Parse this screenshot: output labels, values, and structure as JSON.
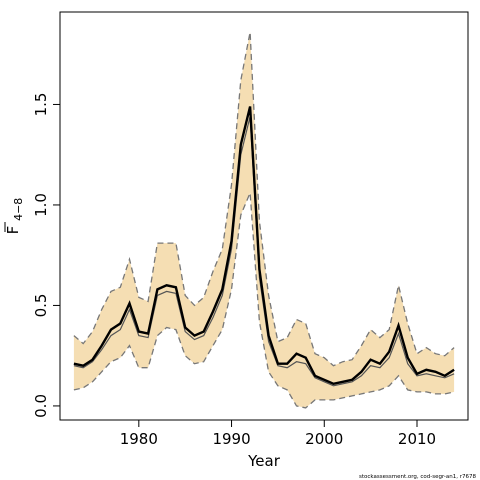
{
  "chart_data": {
    "type": "line",
    "xlabel": "Year",
    "ylabel": {
      "base": "F",
      "subscript": "4−8"
    },
    "footer_note": "stockassessment.org, cod-segr-an1, r7678",
    "xlim": [
      1971.5,
      2015.5
    ],
    "ylim": [
      -0.07,
      1.96
    ],
    "x_ticks": [
      1980,
      1990,
      2000,
      2010
    ],
    "y_ticks": [
      0.0,
      0.5,
      1.0,
      1.5
    ],
    "colors": {
      "band": "#f5deb3",
      "estimate": "#000000",
      "second_line": "#555555",
      "bounds": "#777777",
      "frame": "#000000"
    },
    "x": [
      1973,
      1974,
      1975,
      1976,
      1977,
      1978,
      1979,
      1980,
      1981,
      1982,
      1983,
      1984,
      1985,
      1986,
      1987,
      1988,
      1989,
      1990,
      1991,
      1992,
      1993,
      1994,
      1995,
      1996,
      1997,
      1998,
      1999,
      2000,
      2001,
      2002,
      2003,
      2004,
      2005,
      2006,
      2007,
      2008,
      2009,
      2010,
      2011,
      2012,
      2013,
      2014
    ],
    "series": [
      {
        "role": "estimate",
        "values": [
          0.21,
          0.2,
          0.23,
          0.3,
          0.38,
          0.41,
          0.51,
          0.37,
          0.36,
          0.58,
          0.6,
          0.59,
          0.39,
          0.35,
          0.37,
          0.47,
          0.58,
          0.82,
          1.3,
          1.49,
          0.68,
          0.35,
          0.21,
          0.21,
          0.26,
          0.24,
          0.15,
          0.13,
          0.11,
          0.12,
          0.13,
          0.17,
          0.23,
          0.21,
          0.27,
          0.4,
          0.24,
          0.16,
          0.18,
          0.17,
          0.15,
          0.18
        ]
      },
      {
        "role": "second",
        "values": [
          0.2,
          0.19,
          0.22,
          0.28,
          0.35,
          0.38,
          0.48,
          0.35,
          0.34,
          0.55,
          0.57,
          0.56,
          0.37,
          0.33,
          0.35,
          0.44,
          0.55,
          0.78,
          1.25,
          1.44,
          0.64,
          0.32,
          0.2,
          0.19,
          0.22,
          0.21,
          0.14,
          0.12,
          0.1,
          0.11,
          0.12,
          0.15,
          0.2,
          0.19,
          0.24,
          0.36,
          0.21,
          0.15,
          0.16,
          0.15,
          0.14,
          0.16
        ]
      },
      {
        "role": "upper",
        "values": [
          0.35,
          0.31,
          0.37,
          0.48,
          0.57,
          0.59,
          0.73,
          0.54,
          0.52,
          0.81,
          0.81,
          0.81,
          0.55,
          0.5,
          0.54,
          0.67,
          0.78,
          1.1,
          1.62,
          1.86,
          0.92,
          0.55,
          0.32,
          0.34,
          0.43,
          0.41,
          0.26,
          0.24,
          0.2,
          0.22,
          0.23,
          0.3,
          0.38,
          0.34,
          0.38,
          0.6,
          0.41,
          0.26,
          0.29,
          0.26,
          0.25,
          0.29
        ]
      },
      {
        "role": "lower",
        "values": [
          0.08,
          0.09,
          0.12,
          0.17,
          0.22,
          0.24,
          0.3,
          0.19,
          0.19,
          0.35,
          0.39,
          0.38,
          0.25,
          0.21,
          0.22,
          0.3,
          0.38,
          0.58,
          0.95,
          1.06,
          0.42,
          0.17,
          0.1,
          0.08,
          0.0,
          -0.01,
          0.03,
          0.03,
          0.03,
          0.04,
          0.05,
          0.06,
          0.07,
          0.08,
          0.1,
          0.15,
          0.08,
          0.07,
          0.07,
          0.06,
          0.06,
          0.07
        ]
      }
    ]
  }
}
